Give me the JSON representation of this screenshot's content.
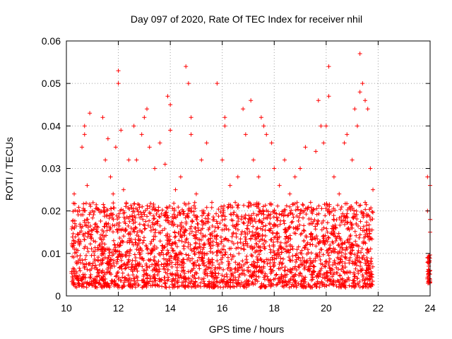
{
  "chart_data": {
    "type": "scatter",
    "title": "Day 097 of 2020, Rate Of TEC Index for receiver nhil",
    "xlabel": "GPS time / hours",
    "ylabel": "ROTI / TECUs",
    "xlim": [
      10,
      24
    ],
    "ylim": [
      0,
      0.06
    ],
    "xticks": [
      10,
      12,
      14,
      16,
      18,
      20,
      22,
      24
    ],
    "xtick_labels": [
      "10",
      "12",
      "14",
      "16",
      "18",
      "20",
      "22",
      "24"
    ],
    "yticks": [
      0,
      0.01,
      0.02,
      0.03,
      0.04,
      0.05,
      0.06
    ],
    "ytick_labels": [
      "0",
      "0.01",
      "0.02",
      "0.03",
      "0.04",
      "0.05",
      "0.06"
    ],
    "grid": true,
    "marker": "+",
    "color": "#ff0000",
    "series": [
      {
        "name": "ROTI",
        "points": [
          [
            10.3,
            0.016
          ],
          [
            10.3,
            0.024
          ],
          [
            10.4,
            0.004
          ],
          [
            10.5,
            0.012
          ],
          [
            10.6,
            0.035
          ],
          [
            10.7,
            0.04
          ],
          [
            10.7,
            0.038
          ],
          [
            10.8,
            0.026
          ],
          [
            10.9,
            0.043
          ],
          [
            11.0,
            0.02
          ],
          [
            11.2,
            0.015
          ],
          [
            11.4,
            0.042
          ],
          [
            11.5,
            0.032
          ],
          [
            11.6,
            0.037
          ],
          [
            11.7,
            0.028
          ],
          [
            11.8,
            0.024
          ],
          [
            11.9,
            0.035
          ],
          [
            12.0,
            0.05
          ],
          [
            12.0,
            0.053
          ],
          [
            12.1,
            0.039
          ],
          [
            12.2,
            0.025
          ],
          [
            12.4,
            0.032
          ],
          [
            12.6,
            0.04
          ],
          [
            12.7,
            0.032
          ],
          [
            12.9,
            0.038
          ],
          [
            13.0,
            0.042
          ],
          [
            13.1,
            0.044
          ],
          [
            13.2,
            0.035
          ],
          [
            13.4,
            0.03
          ],
          [
            13.6,
            0.036
          ],
          [
            13.8,
            0.031
          ],
          [
            13.9,
            0.047
          ],
          [
            14.0,
            0.045
          ],
          [
            14.0,
            0.039
          ],
          [
            14.2,
            0.025
          ],
          [
            14.4,
            0.028
          ],
          [
            14.6,
            0.054
          ],
          [
            14.7,
            0.05
          ],
          [
            14.8,
            0.042
          ],
          [
            14.8,
            0.038
          ],
          [
            15.0,
            0.024
          ],
          [
            15.2,
            0.032
          ],
          [
            15.4,
            0.036
          ],
          [
            15.6,
            0.022
          ],
          [
            15.8,
            0.05
          ],
          [
            16.0,
            0.032
          ],
          [
            16.1,
            0.04
          ],
          [
            16.1,
            0.042
          ],
          [
            16.3,
            0.026
          ],
          [
            16.5,
            0.022
          ],
          [
            16.6,
            0.028
          ],
          [
            16.8,
            0.044
          ],
          [
            16.9,
            0.038
          ],
          [
            17.1,
            0.046
          ],
          [
            17.2,
            0.032
          ],
          [
            17.4,
            0.028
          ],
          [
            17.5,
            0.042
          ],
          [
            17.6,
            0.04
          ],
          [
            17.7,
            0.038
          ],
          [
            17.9,
            0.036
          ],
          [
            18.0,
            0.03
          ],
          [
            18.2,
            0.026
          ],
          [
            18.4,
            0.032
          ],
          [
            18.6,
            0.024
          ],
          [
            18.8,
            0.028
          ],
          [
            19.0,
            0.03
          ],
          [
            19.2,
            0.035
          ],
          [
            19.4,
            0.022
          ],
          [
            19.6,
            0.034
          ],
          [
            19.7,
            0.046
          ],
          [
            19.8,
            0.04
          ],
          [
            19.9,
            0.036
          ],
          [
            20.0,
            0.04
          ],
          [
            20.1,
            0.054
          ],
          [
            20.1,
            0.047
          ],
          [
            20.3,
            0.028
          ],
          [
            20.5,
            0.024
          ],
          [
            20.7,
            0.036
          ],
          [
            20.8,
            0.038
          ],
          [
            21.0,
            0.032
          ],
          [
            21.1,
            0.044
          ],
          [
            21.2,
            0.04
          ],
          [
            21.3,
            0.048
          ],
          [
            21.3,
            0.057
          ],
          [
            21.4,
            0.05
          ],
          [
            21.5,
            0.046
          ],
          [
            21.6,
            0.044
          ],
          [
            21.7,
            0.03
          ],
          [
            21.8,
            0.025
          ],
          [
            23.9,
            0.028
          ],
          [
            23.9,
            0.02
          ],
          [
            24.0,
            0.026
          ],
          [
            24.0,
            0.018
          ],
          [
            24.0,
            0.015
          ],
          [
            23.9,
            0.009
          ],
          [
            24.0,
            0.006
          ],
          [
            23.9,
            0.004
          ],
          [
            21.5,
            0.022
          ],
          [
            10.5,
            0.02
          ],
          [
            13.5,
            0.02
          ]
        ],
        "dense_band": {
          "segments": [
            {
              "x": [
                10.2,
                21.8
              ],
              "y_min": 0.002,
              "y_max": 0.022
            },
            {
              "x": [
                23.9,
                24.0
              ],
              "y_min": 0.003,
              "y_max": 0.01
            }
          ]
        }
      }
    ]
  }
}
